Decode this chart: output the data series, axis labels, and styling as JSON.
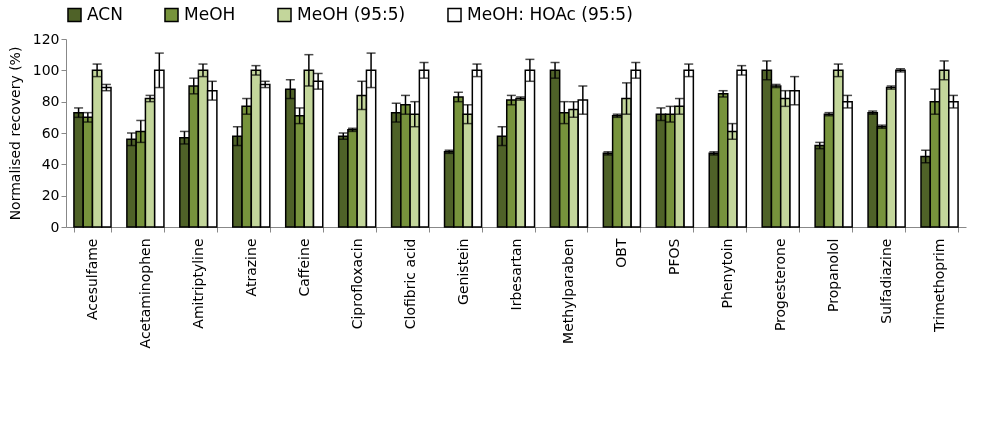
{
  "chart_data": {
    "type": "bar",
    "ylabel": "Normalised recovery (%)",
    "categories": [
      "Acesulfame",
      "Acetaminophen",
      "Amitriptyline",
      "Atrazine",
      "Caffeine",
      "Ciprofloxacin",
      "Clofibric acid",
      "Genistein",
      "Irbesartan",
      "Methylparaben",
      "OBT",
      "PFOS",
      "Phenytoin",
      "Progesterone",
      "Propanolol",
      "Sulfadiazine",
      "Trimethoprim"
    ],
    "series": [
      {
        "name": "ACN",
        "color": "#4f6228",
        "values": [
          73,
          56,
          57,
          58,
          88,
          58,
          73,
          48,
          58,
          100,
          47,
          72,
          47,
          100,
          52,
          73,
          45
        ],
        "errors": [
          3,
          4,
          4,
          6,
          6,
          2,
          6,
          1,
          6,
          5,
          1,
          4,
          1,
          6,
          2,
          1,
          4
        ]
      },
      {
        "name": "MeOH",
        "color": "#77933c",
        "values": [
          70,
          61,
          90,
          77,
          71,
          62,
          78,
          83,
          81,
          73,
          71,
          72,
          85,
          90,
          72,
          64,
          80
        ],
        "errors": [
          3,
          7,
          5,
          5,
          5,
          1,
          6,
          3,
          3,
          7,
          1,
          5,
          2,
          1,
          1,
          1,
          8
        ]
      },
      {
        "name": "MeOH (95:5)",
        "color": "#c3d69b",
        "values": [
          100,
          82,
          100,
          100,
          100,
          84,
          72,
          72,
          82,
          75,
          82,
          77,
          61,
          82,
          100,
          89,
          100
        ],
        "errors": [
          4,
          2,
          4,
          3,
          10,
          9,
          8,
          6,
          1,
          5,
          10,
          5,
          5,
          5,
          4,
          1,
          6
        ]
      },
      {
        "name": "MeOH: HOAc (95:5)",
        "color": "#ffffff",
        "values": [
          89,
          100,
          87,
          91,
          93,
          100,
          100,
          100,
          100,
          81,
          100,
          100,
          100,
          87,
          80,
          100,
          80
        ],
        "errors": [
          2,
          11,
          6,
          2,
          5,
          11,
          5,
          4,
          7,
          9,
          5,
          4,
          3,
          9,
          4,
          1,
          4
        ]
      }
    ],
    "ylim": [
      0,
      120
    ],
    "yticks": [
      0,
      20,
      40,
      60,
      80,
      100,
      120
    ],
    "grid": false,
    "legend": "top"
  }
}
